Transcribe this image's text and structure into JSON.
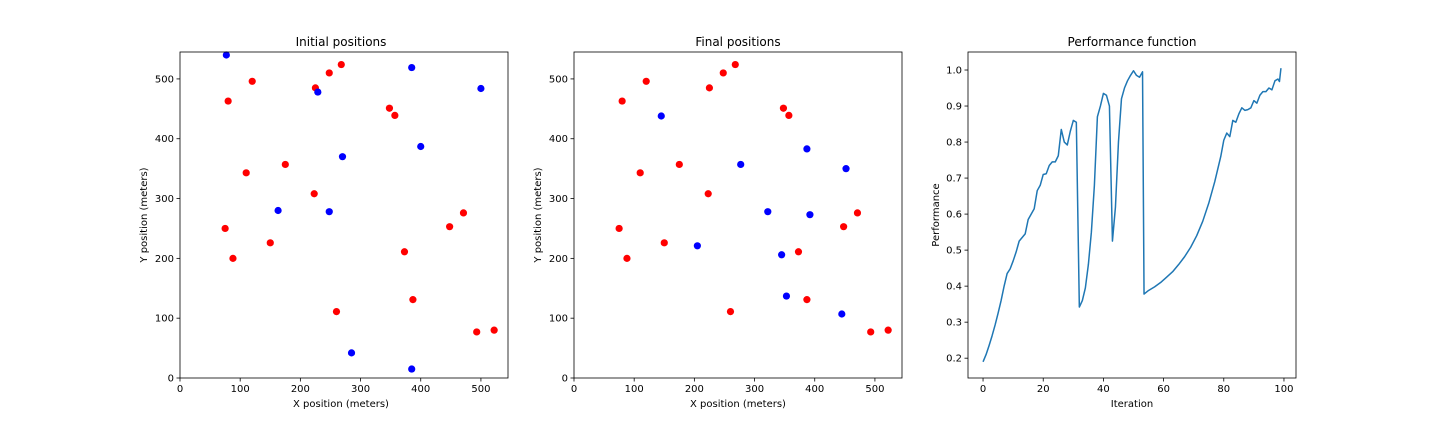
{
  "chart_data": [
    {
      "type": "scatter",
      "title": "Initial positions",
      "xlabel": "X position (meters)",
      "ylabel": "Y position (meters)",
      "xlim": [
        0,
        545
      ],
      "ylim": [
        0,
        545
      ],
      "xticks": [
        0,
        100,
        200,
        300,
        400,
        500
      ],
      "yticks": [
        0,
        100,
        200,
        300,
        400,
        500
      ],
      "grid": false,
      "series": [
        {
          "color": "#ff0000",
          "points": [
            [
              80,
              463
            ],
            [
              120,
              496
            ],
            [
              225,
              485
            ],
            [
              248,
              510
            ],
            [
              268,
              524
            ],
            [
              348,
              451
            ],
            [
              357,
              439
            ],
            [
              175,
              357
            ],
            [
              110,
              343
            ],
            [
              223,
              308
            ],
            [
              75,
              250
            ],
            [
              150,
              226
            ],
            [
              88,
              200
            ],
            [
              373,
              211
            ],
            [
              448,
              253
            ],
            [
              471,
              276
            ],
            [
              387,
              131
            ],
            [
              260,
              111
            ],
            [
              493,
              77
            ],
            [
              522,
              80
            ]
          ]
        },
        {
          "color": "#0000ff",
          "points": [
            [
              77,
              540
            ],
            [
              229,
              478
            ],
            [
              385,
              519
            ],
            [
              500,
              484
            ],
            [
              400,
              387
            ],
            [
              270,
              370
            ],
            [
              163,
              280
            ],
            [
              248,
              278
            ],
            [
              285,
              42
            ],
            [
              385,
              15
            ]
          ]
        }
      ]
    },
    {
      "type": "scatter",
      "title": "Final positions",
      "xlabel": "X position (meters)",
      "ylabel": "Y position (meters)",
      "xlim": [
        0,
        545
      ],
      "ylim": [
        0,
        545
      ],
      "xticks": [
        0,
        100,
        200,
        300,
        400,
        500
      ],
      "yticks": [
        0,
        100,
        200,
        300,
        400,
        500
      ],
      "grid": false,
      "series": [
        {
          "color": "#ff0000",
          "points": [
            [
              80,
              463
            ],
            [
              120,
              496
            ],
            [
              225,
              485
            ],
            [
              248,
              510
            ],
            [
              268,
              524
            ],
            [
              348,
              451
            ],
            [
              357,
              439
            ],
            [
              175,
              357
            ],
            [
              110,
              343
            ],
            [
              223,
              308
            ],
            [
              75,
              250
            ],
            [
              150,
              226
            ],
            [
              88,
              200
            ],
            [
              373,
              211
            ],
            [
              448,
              253
            ],
            [
              471,
              276
            ],
            [
              387,
              131
            ],
            [
              260,
              111
            ],
            [
              493,
              77
            ],
            [
              522,
              80
            ]
          ]
        },
        {
          "color": "#0000ff",
          "points": [
            [
              145,
              438
            ],
            [
              277,
              357
            ],
            [
              387,
              383
            ],
            [
              452,
              350
            ],
            [
              322,
              278
            ],
            [
              392,
              273
            ],
            [
              205,
              221
            ],
            [
              345,
              206
            ],
            [
              353,
              137
            ],
            [
              445,
              107
            ]
          ]
        }
      ]
    },
    {
      "type": "line",
      "title": "Performance function",
      "xlabel": "Iteration",
      "ylabel": "Performance",
      "xlim": [
        -5,
        104
      ],
      "ylim": [
        0.145,
        1.05
      ],
      "xticks": [
        0,
        20,
        40,
        60,
        80,
        100
      ],
      "yticks": [
        0.2,
        0.3,
        0.4,
        0.5,
        0.6,
        0.7,
        0.8,
        0.9,
        1.0
      ],
      "grid": false,
      "series": [
        {
          "color": "#1f77b4",
          "points": [
            [
              0,
              0.19
            ],
            [
              1,
              0.21
            ],
            [
              2,
              0.235
            ],
            [
              3,
              0.262
            ],
            [
              4,
              0.292
            ],
            [
              5,
              0.325
            ],
            [
              6,
              0.36
            ],
            [
              7,
              0.4
            ],
            [
              8,
              0.435
            ],
            [
              9,
              0.448
            ],
            [
              10,
              0.47
            ],
            [
              11,
              0.495
            ],
            [
              12,
              0.525
            ],
            [
              13,
              0.535
            ],
            [
              14,
              0.545
            ],
            [
              15,
              0.585
            ],
            [
              16,
              0.6
            ],
            [
              17,
              0.615
            ],
            [
              18,
              0.665
            ],
            [
              19,
              0.68
            ],
            [
              20,
              0.71
            ],
            [
              21,
              0.712
            ],
            [
              22,
              0.735
            ],
            [
              23,
              0.745
            ],
            [
              24,
              0.745
            ],
            [
              25,
              0.762
            ],
            [
              26,
              0.835
            ],
            [
              27,
              0.8
            ],
            [
              28,
              0.792
            ],
            [
              29,
              0.83
            ],
            [
              30,
              0.86
            ],
            [
              31,
              0.855
            ],
            [
              32,
              0.342
            ],
            [
              33,
              0.36
            ],
            [
              34,
              0.395
            ],
            [
              35,
              0.46
            ],
            [
              36,
              0.55
            ],
            [
              37,
              0.68
            ],
            [
              38,
              0.87
            ],
            [
              39,
              0.9
            ],
            [
              40,
              0.935
            ],
            [
              41,
              0.93
            ],
            [
              42,
              0.9
            ],
            [
              43,
              0.525
            ],
            [
              44,
              0.62
            ],
            [
              45,
              0.8
            ],
            [
              46,
              0.92
            ],
            [
              47,
              0.95
            ],
            [
              48,
              0.97
            ],
            [
              49,
              0.985
            ],
            [
              50,
              0.998
            ],
            [
              51,
              0.985
            ],
            [
              52,
              0.98
            ],
            [
              53,
              0.995
            ],
            [
              53.5,
              0.378
            ],
            [
              55,
              0.388
            ],
            [
              57,
              0.398
            ],
            [
              59,
              0.41
            ],
            [
              61,
              0.425
            ],
            [
              63,
              0.44
            ],
            [
              65,
              0.46
            ],
            [
              67,
              0.482
            ],
            [
              69,
              0.508
            ],
            [
              71,
              0.54
            ],
            [
              73,
              0.58
            ],
            [
              75,
              0.63
            ],
            [
              77,
              0.69
            ],
            [
              79,
              0.76
            ],
            [
              80,
              0.805
            ],
            [
              81,
              0.825
            ],
            [
              82,
              0.815
            ],
            [
              83,
              0.86
            ],
            [
              84,
              0.855
            ],
            [
              85,
              0.878
            ],
            [
              86,
              0.895
            ],
            [
              87,
              0.888
            ],
            [
              88,
              0.89
            ],
            [
              89,
              0.895
            ],
            [
              90,
              0.915
            ],
            [
              91,
              0.908
            ],
            [
              92,
              0.93
            ],
            [
              93,
              0.94
            ],
            [
              94,
              0.94
            ],
            [
              95,
              0.95
            ],
            [
              96,
              0.945
            ],
            [
              97,
              0.97
            ],
            [
              98,
              0.975
            ],
            [
              98.5,
              0.968
            ],
            [
              99,
              1.005
            ]
          ]
        }
      ]
    }
  ]
}
